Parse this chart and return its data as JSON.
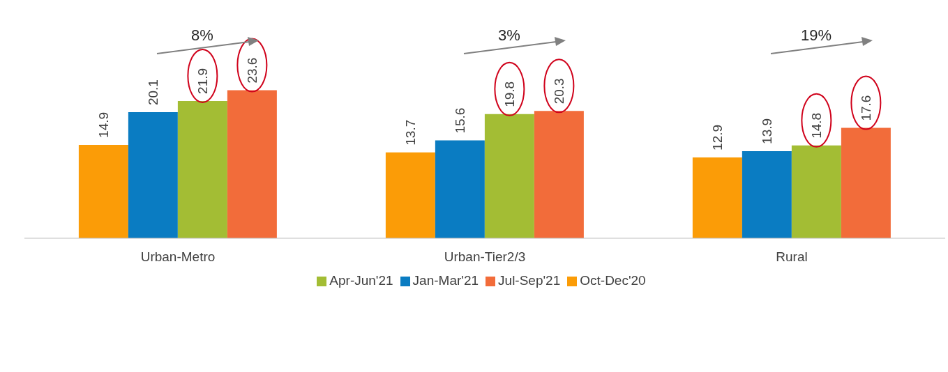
{
  "chart_data": {
    "type": "bar",
    "categories": [
      "Urban-Metro",
      "Urban-Tier2/3",
      "Rural"
    ],
    "series": [
      {
        "name": "Oct-Dec'20",
        "color": "#fb9c07",
        "values": [
          14.9,
          13.7,
          12.9
        ]
      },
      {
        "name": "Jan-Mar'21",
        "color": "#0a7cc2",
        "values": [
          20.1,
          15.6,
          13.9
        ]
      },
      {
        "name": "Apr-Jun'21",
        "color": "#a3bd34",
        "values": [
          21.9,
          19.8,
          14.8
        ]
      },
      {
        "name": "Jul-Sep'21",
        "color": "#f26c3a",
        "values": [
          23.6,
          20.3,
          17.6
        ]
      }
    ],
    "annotations": [
      "8%",
      "3%",
      "19%"
    ],
    "data_labels": true,
    "legend": "bottom",
    "grid": false
  }
}
